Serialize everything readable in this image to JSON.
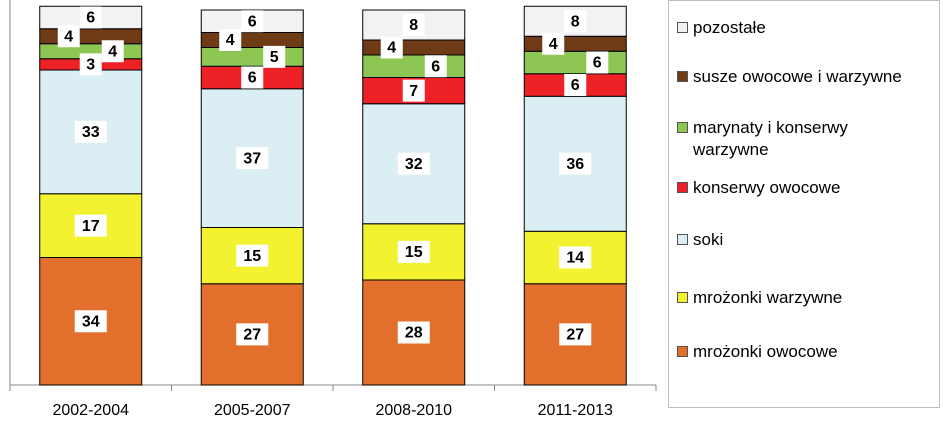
{
  "chart_data": {
    "type": "stacked_bar",
    "categories": [
      "2002-2004",
      "2005-2007",
      "2008-2010",
      "2011-2013"
    ],
    "series": [
      {
        "name": "mrożonki owocowe",
        "color": "#E2702C",
        "values": [
          34,
          27,
          28,
          27
        ]
      },
      {
        "name": "mrożonki warzywne",
        "color": "#F2F231",
        "values": [
          17,
          15,
          15,
          14
        ]
      },
      {
        "name": "soki",
        "color": "#DAEEF3",
        "values": [
          33,
          37,
          32,
          36
        ]
      },
      {
        "name": "konserwy owocowe",
        "color": "#EE2226",
        "values": [
          3,
          6,
          7,
          6
        ]
      },
      {
        "name": "marynaty i konserwy warzywne",
        "color": "#8DC652",
        "values": [
          4,
          5,
          6,
          6
        ]
      },
      {
        "name": "susze owocowe i warzywne",
        "color": "#6E3B16",
        "values": [
          4,
          4,
          4,
          4
        ]
      },
      {
        "name": "pozostałe",
        "color": "#F2F2F2",
        "values": [
          6,
          6,
          8,
          8
        ]
      }
    ],
    "ylim": [
      0,
      100
    ]
  }
}
